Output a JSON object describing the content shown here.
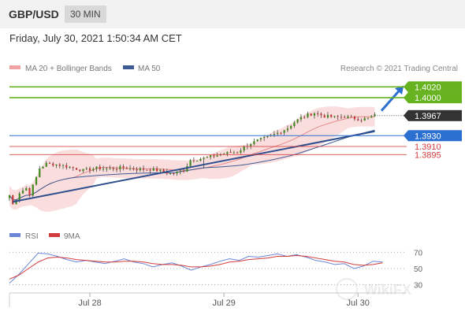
{
  "header": {
    "pair": "GBP/USD",
    "timeframe": "30 MIN",
    "datetime": "Friday, July 30, 2021 1:50:34 AM CET"
  },
  "colors": {
    "resistance": "#66b21f",
    "current": "#333333",
    "pivot": "#2b6fd1",
    "support": "#d23b3b",
    "trendline": "#2e4e8e",
    "ma50": "#3d5b94",
    "bollinger": "#f6c8c8",
    "candle_up": "#3f8a1e",
    "candle_down": "#c83a3a",
    "rsi": "#6b86d6",
    "rsi_ma": "#d23b3b"
  },
  "chart_data": [
    {
      "type": "candlestick",
      "title": "GBP/USD",
      "timeframe": "30 MIN",
      "legend": [
        "MA 20 + Bollinger Bands",
        "MA 50"
      ],
      "legend_position": "top-left",
      "credit": "Research © 2021 Trading Central",
      "x_ticks": [
        "Jul 28",
        "Jul 29",
        "Jul 30"
      ],
      "ylim": [
        1.3788,
        1.4035
      ],
      "levels": [
        {
          "label": "1.4020",
          "value": 1.402,
          "role": "resistance"
        },
        {
          "label": "1.4000",
          "value": 1.4,
          "role": "resistance"
        },
        {
          "label": "1.3967",
          "value": 1.3967,
          "role": "current"
        },
        {
          "label": "1.3930",
          "value": 1.393,
          "role": "pivot"
        },
        {
          "label": "1.3910",
          "value": 1.391,
          "role": "support"
        },
        {
          "label": "1.3895",
          "value": 1.3895,
          "role": "support"
        }
      ],
      "close_path": [
        [
          0,
          1.382
        ],
        [
          1,
          1.3803
        ],
        [
          3,
          1.3825
        ],
        [
          5,
          1.3833
        ],
        [
          6,
          1.3822
        ],
        [
          8,
          1.3853
        ],
        [
          9,
          1.387
        ],
        [
          11,
          1.3878
        ],
        [
          14,
          1.3877
        ],
        [
          18,
          1.3872
        ],
        [
          22,
          1.3866
        ],
        [
          26,
          1.387
        ],
        [
          30,
          1.3869
        ],
        [
          34,
          1.3871
        ],
        [
          38,
          1.3868
        ],
        [
          42,
          1.3868
        ],
        [
          45,
          1.3865
        ],
        [
          48,
          1.386
        ],
        [
          50,
          1.3862
        ],
        [
          52,
          1.3866
        ],
        [
          54,
          1.3885
        ],
        [
          58,
          1.3888
        ],
        [
          62,
          1.3894
        ],
        [
          65,
          1.3898
        ],
        [
          68,
          1.39
        ],
        [
          71,
          1.3913
        ],
        [
          74,
          1.3921
        ],
        [
          77,
          1.3927
        ],
        [
          80,
          1.3935
        ],
        [
          83,
          1.3944
        ],
        [
          85,
          1.3955
        ],
        [
          87,
          1.3963
        ],
        [
          89,
          1.3968
        ],
        [
          91,
          1.3972
        ],
        [
          92,
          1.397
        ],
        [
          94,
          1.3966
        ],
        [
          97,
          1.3964
        ],
        [
          100,
          1.3965
        ],
        [
          103,
          1.3962
        ],
        [
          105,
          1.396
        ],
        [
          107,
          1.3962
        ],
        [
          109,
          1.3967
        ]
      ],
      "trendline": [
        [
          1,
          1.3808
        ],
        [
          109,
          1.3938
        ]
      ],
      "projection": [
        [
          111,
          1.3976
        ],
        [
          117,
          1.4018
        ]
      ]
    },
    {
      "type": "line",
      "title": "RSI",
      "legend": [
        "RSI",
        "9MA"
      ],
      "y_ticks": [
        "70",
        "50",
        "30"
      ],
      "ylim": [
        20,
        80
      ],
      "rsi": [
        32,
        43,
        56,
        69,
        68,
        65,
        61,
        58,
        60,
        58,
        56,
        59,
        62,
        58,
        56,
        52,
        55,
        57,
        53,
        48,
        52,
        55,
        59,
        62,
        60,
        65,
        64,
        66,
        68,
        65,
        67,
        64,
        60,
        58,
        55,
        56,
        50,
        53,
        59,
        58
      ],
      "rsi_ma": [
        37,
        42,
        50,
        58,
        63,
        64,
        63,
        61,
        60,
        59,
        58,
        58,
        59,
        59,
        58,
        56,
        55,
        55,
        54,
        52,
        52,
        53,
        55,
        58,
        59,
        61,
        62,
        63,
        65,
        65,
        66,
        65,
        63,
        61,
        59,
        58,
        55,
        54,
        55,
        57
      ]
    }
  ]
}
